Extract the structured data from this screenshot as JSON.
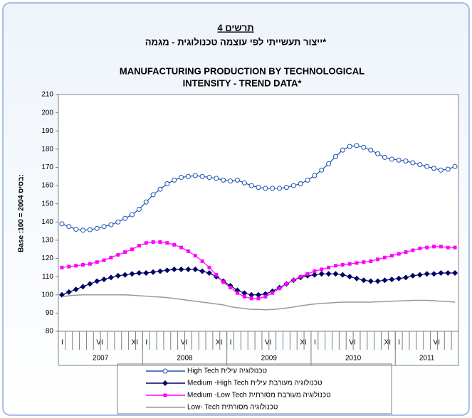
{
  "chart_data": {
    "type": "line",
    "label": "תרשים 4",
    "subtitle": "ייצור תעשייתי לפי עוצמה טכנולוגית - מגמה*",
    "title": [
      "MANUFACTURING PRODUCTION BY TECHNOLOGICAL",
      "INTENSITY - TREND DATA*"
    ],
    "y_label": "Base :100 = 2004  בסיס:",
    "ylim": [
      80,
      210
    ],
    "yticks": [
      80,
      90,
      100,
      110,
      120,
      130,
      140,
      150,
      160,
      170,
      180,
      190,
      200,
      210
    ],
    "years": [
      "2007",
      "2008",
      "2009",
      "2010",
      "2011"
    ],
    "categories": [
      "I",
      null,
      null,
      null,
      null,
      "VI",
      null,
      null,
      null,
      null,
      "XI",
      null,
      "I",
      null,
      null,
      null,
      null,
      "VI",
      null,
      null,
      null,
      null,
      "XI",
      null,
      "I",
      null,
      null,
      null,
      null,
      "VI",
      null,
      null,
      null,
      null,
      "XI",
      null,
      "I",
      null,
      null,
      null,
      null,
      "VI",
      null,
      null,
      null,
      null,
      "XI",
      null,
      "I",
      null,
      null,
      null,
      null,
      "VI",
      null,
      null,
      null
    ],
    "series": [
      {
        "name": "High Tech טכנולוגיה עילית",
        "color": "#1f4fb0",
        "marker": "circle",
        "values": [
          139,
          137.5,
          136,
          135.5,
          135.8,
          136.5,
          137.5,
          138.5,
          140,
          142,
          144,
          147,
          151,
          155,
          158,
          161,
          163,
          164.5,
          165,
          165.5,
          165,
          164.5,
          164,
          163,
          162.5,
          163,
          161.5,
          160,
          159,
          158.5,
          158.5,
          158.5,
          159,
          160,
          161,
          163,
          165.5,
          168.5,
          172,
          176,
          179.5,
          181.5,
          182,
          181,
          179.5,
          177.5,
          175.5,
          174.5,
          174,
          173.5,
          172.5,
          171.5,
          170.5,
          169.5,
          168.5,
          169,
          170.5
        ]
      },
      {
        "name": "Medium -High Tech  טכנולוגיה מעורבת עילית",
        "color": "#000066",
        "marker": "diamond",
        "values": [
          100,
          101.5,
          103,
          104.5,
          106,
          107.5,
          108.5,
          109.5,
          110.5,
          111,
          111.5,
          112,
          112,
          112.5,
          113,
          113.5,
          114,
          114,
          114,
          114,
          113,
          112,
          110,
          107.5,
          105,
          102.5,
          101,
          100,
          100,
          100.5,
          102,
          104,
          106,
          108,
          109.5,
          110.5,
          111,
          111.5,
          111.5,
          111.5,
          111,
          110,
          109,
          108,
          107.5,
          107.5,
          108,
          108.5,
          109,
          109.5,
          110.5,
          111,
          111.5,
          111.5,
          112,
          112,
          112
        ]
      },
      {
        "name": "Medium -Low Tech  טכנולוגיה מעורבת מסורתית",
        "color": "#ff00ff",
        "marker": "square",
        "values": [
          115,
          115.5,
          116,
          116.5,
          117,
          118,
          119,
          120.5,
          122,
          123.5,
          125,
          127,
          128.5,
          129,
          129,
          128.5,
          127.5,
          126,
          124,
          121.5,
          118.5,
          115,
          111,
          107,
          104,
          101,
          99,
          98,
          98,
          99,
          101,
          103.5,
          106,
          108,
          110,
          111.5,
          113,
          114,
          115,
          116,
          116.5,
          117,
          117.5,
          118,
          118.5,
          119.5,
          120.5,
          121.5,
          122.5,
          123.5,
          124.5,
          125.5,
          126,
          126.5,
          126.5,
          126,
          126
        ]
      },
      {
        "name": "Low- Tech  טכנולוגיה מסורתית",
        "color": "#999999",
        "marker": "none",
        "values": [
          99,
          99.5,
          99.8,
          100,
          100,
          100,
          100,
          100,
          100,
          100,
          99.8,
          99.5,
          99.3,
          99,
          98.8,
          98.5,
          98,
          97.5,
          97,
          96.5,
          96,
          95.5,
          95,
          94.5,
          93.5,
          93,
          92.5,
          92,
          92,
          91.8,
          92,
          92.3,
          92.8,
          93.3,
          94,
          94.5,
          95,
          95.3,
          95.5,
          95.8,
          96,
          96,
          96,
          96,
          96,
          96.2,
          96.3,
          96.5,
          96.7,
          96.8,
          97,
          97,
          97,
          96.8,
          96.5,
          96.3,
          96
        ]
      }
    ]
  }
}
